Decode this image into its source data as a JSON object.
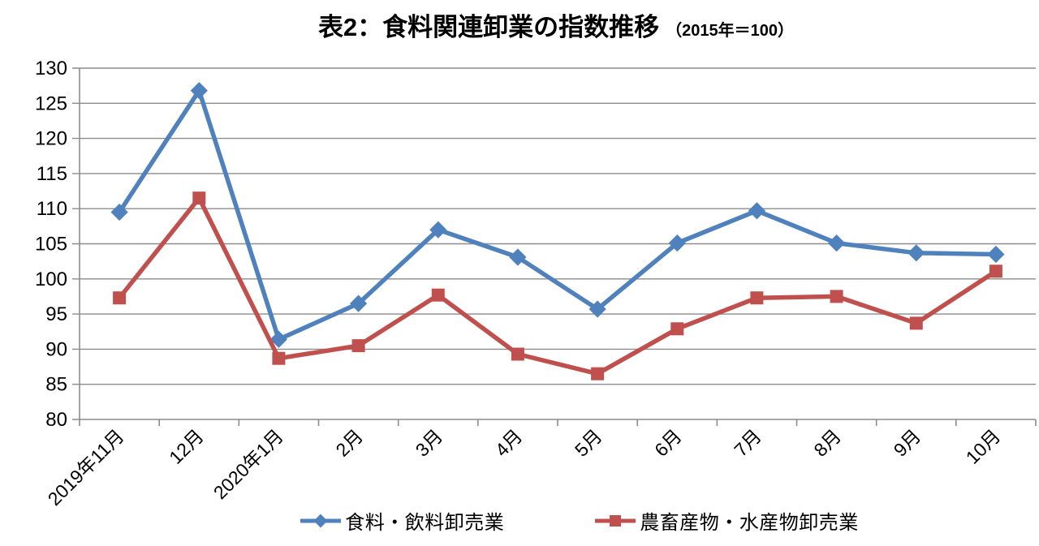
{
  "title": {
    "main": "表2：食料関連卸業の指数推移",
    "subtitle": "（2015年＝100）"
  },
  "colors": {
    "grid": "#8C8C8C",
    "axis": "#8C8C8C",
    "text": "#000000",
    "series_blue": "#4F81BD",
    "series_red": "#C0504D",
    "background": "#FFFFFF"
  },
  "chart_data": {
    "type": "line",
    "categories": [
      "2019年11月",
      "12月",
      "2020年1月",
      "2月",
      "3月",
      "4月",
      "5月",
      "6月",
      "7月",
      "8月",
      "9月",
      "10月"
    ],
    "series": [
      {
        "name": "食料・飲料卸売業",
        "marker": "diamond",
        "color": "#4F81BD",
        "values": [
          109.5,
          126.8,
          91.4,
          96.5,
          107.0,
          103.1,
          95.7,
          105.1,
          109.7,
          105.1,
          103.7,
          103.5
        ]
      },
      {
        "name": "農畜産物・水産物卸売業",
        "marker": "square",
        "color": "#C0504D",
        "values": [
          97.3,
          111.5,
          88.7,
          90.5,
          97.7,
          89.3,
          86.5,
          92.9,
          97.3,
          97.5,
          93.7,
          101.1
        ]
      }
    ],
    "ylim": [
      80,
      130
    ],
    "yticks": [
      80,
      85,
      90,
      95,
      100,
      105,
      110,
      115,
      120,
      125,
      130
    ],
    "xlabel": "",
    "ylabel": "",
    "grid": true,
    "legend_position": "bottom"
  }
}
